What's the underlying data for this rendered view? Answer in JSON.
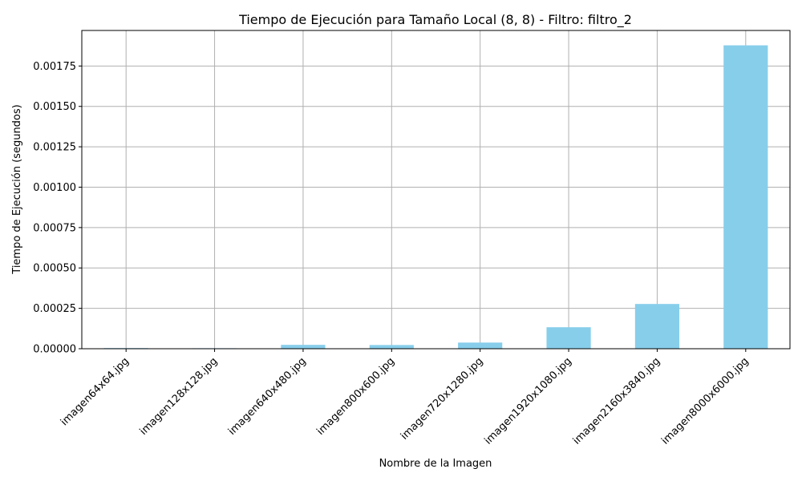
{
  "chart_data": {
    "type": "bar",
    "title": "Tiempo de Ejecución para Tamaño Local (8, 8) - Filtro: filtro_2",
    "xlabel": "Nombre de la Imagen",
    "ylabel": "Tiempo de Ejecución (segundos)",
    "categories": [
      "imagen64x64.jpg",
      "imagen128x128.jpg",
      "imagen640x480.jpg",
      "imagen800x600.jpg",
      "imagen720x1280.jpg",
      "imagen1920x1080.jpg",
      "imagen2160x3840.jpg",
      "imagen8000x6000.jpg"
    ],
    "values": [
      4e-06,
      3e-06,
      2.4e-05,
      2.3e-05,
      3.8e-05,
      0.000133,
      0.000277,
      0.001878
    ],
    "ylim": [
      0,
      0.00197
    ],
    "yticks": [
      0,
      0.00025,
      0.0005,
      0.00075,
      0.001,
      0.00125,
      0.0015,
      0.00175
    ],
    "ytick_labels": [
      "0.00000",
      "0.00025",
      "0.00050",
      "0.00075",
      "0.00100",
      "0.00125",
      "0.00150",
      "0.00175"
    ],
    "grid": true,
    "bar_color": "#87ceeb",
    "grid_color": "#b0b0b0",
    "legend": "none"
  }
}
